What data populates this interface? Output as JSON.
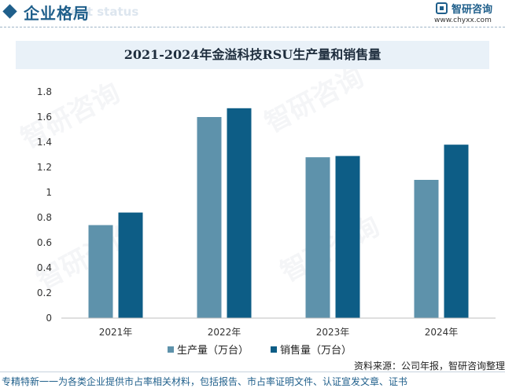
{
  "header": {
    "title": "企业格局",
    "subtitle": "ent status",
    "logo_name": "智研咨询",
    "logo_url": "www.chyxx.com"
  },
  "watermark": {
    "text": "智研咨询"
  },
  "chart_data": {
    "type": "bar",
    "title": "2021-2024年金溢科技RSU生产量和销售量",
    "categories": [
      "2021年",
      "2022年",
      "2023年",
      "2024年"
    ],
    "series": [
      {
        "name": "生产量（万台）",
        "values": [
          0.74,
          1.6,
          1.28,
          1.1
        ],
        "color": "#5e92ab"
      },
      {
        "name": "销售量（万台）",
        "values": [
          0.84,
          1.67,
          1.29,
          1.38
        ],
        "color": "#0d5d86"
      }
    ],
    "ylim": [
      0,
      1.8
    ],
    "yticks": [
      "0",
      "0.2",
      "0.4",
      "0.6",
      "0.8",
      "1",
      "1.2",
      "1.4",
      "1.6",
      "1.8"
    ],
    "xlabel": "",
    "ylabel": "",
    "grid": false,
    "legend": "bottom"
  },
  "footer": {
    "source": "资料来源：公司年报，智研咨询整理",
    "disclaimer": "专精特新一一为各类企业提供市占率相关材料，包括报告、市占率证明文件、认证宣发文章、证书"
  }
}
